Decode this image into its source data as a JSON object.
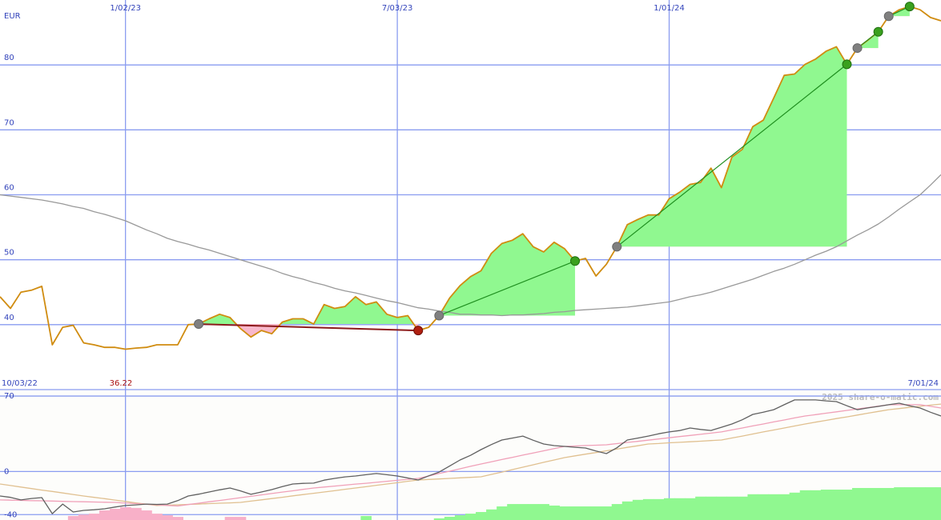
{
  "watermark": "2025 share-o-matic.com",
  "chart_data": [
    {
      "type": "line",
      "y_unit": "EUR",
      "period": [
        "10/03/22",
        "7/01/24"
      ],
      "categories": [
        null,
        null,
        null,
        null,
        null,
        null,
        null,
        null,
        null,
        null,
        null,
        null,
        "1/02/23",
        null,
        null,
        null,
        null,
        null,
        null,
        null,
        null,
        null,
        null,
        null,
        null,
        null,
        null,
        null,
        null,
        null,
        null,
        null,
        null,
        null,
        null,
        null,
        null,
        null,
        "7/03/23",
        null,
        null,
        null,
        null,
        null,
        null,
        null,
        null,
        null,
        null,
        null,
        null,
        null,
        null,
        null,
        null,
        null,
        null,
        null,
        null,
        null,
        null,
        null,
        null,
        null,
        "1/01/24",
        null,
        null,
        null,
        null,
        null,
        null,
        null,
        null,
        null,
        null,
        null,
        null,
        null,
        null,
        null,
        null,
        null,
        null,
        null,
        null,
        null,
        null,
        null,
        null,
        null,
        null
      ],
      "series": [
        {
          "color": "#d08c10",
          "values": [
            44.3,
            42.5,
            45,
            45.3,
            45.9,
            36.9,
            39.6,
            39.9,
            37.2,
            36.9,
            36.5,
            36.5,
            36.22,
            36.4,
            36.5,
            36.9,
            36.9,
            36.9,
            40,
            40.1,
            40.9,
            41.6,
            41.1,
            39.4,
            38.1,
            39.1,
            38.6,
            40.4,
            40.9,
            40.9,
            40.1,
            43.1,
            42.5,
            42.8,
            44.3,
            43.1,
            43.5,
            41.6,
            41.1,
            41.4,
            39.1,
            39.6,
            41.4,
            44.1,
            46,
            47.4,
            48.3,
            51,
            52.5,
            53,
            54,
            52,
            51.2,
            52.7,
            51.7,
            49.8,
            50.2,
            47.5,
            49.3,
            52,
            55.4,
            56.2,
            56.9,
            56.9,
            59.4,
            60.4,
            61.6,
            61.9,
            64.1,
            61.1,
            65.8,
            67,
            70.5,
            71.5,
            74.9,
            78.4,
            78.6,
            80.1,
            80.9,
            82.1,
            82.8,
            80.1,
            82.6,
            83.8,
            85.1,
            87.5,
            88.5,
            89,
            88.5,
            87.3,
            86.8
          ]
        },
        {
          "color": "#999999",
          "values": [
            60,
            59.8,
            59.6,
            59.4,
            59.2,
            58.9,
            58.6,
            58.2,
            57.9,
            57.4,
            57,
            56.5,
            56,
            55.3,
            54.6,
            54,
            53.3,
            52.8,
            52.4,
            51.9,
            51.5,
            51,
            50.5,
            50,
            49.5,
            49,
            48.5,
            47.9,
            47.4,
            47,
            46.5,
            46.1,
            45.6,
            45.2,
            44.9,
            44.5,
            44.1,
            43.7,
            43.4,
            43,
            42.6,
            42.4,
            42.1,
            41.9,
            41.6,
            41.6,
            41.5,
            41.5,
            41.4,
            41.5,
            41.5,
            41.6,
            41.7,
            41.9,
            42,
            42.2,
            42.3,
            42.4,
            42.5,
            42.6,
            42.7,
            42.9,
            43.1,
            43.3,
            43.5,
            43.9,
            44.3,
            44.6,
            45,
            45.5,
            46,
            46.5,
            47,
            47.6,
            48.2,
            48.7,
            49.3,
            50,
            50.7,
            51.3,
            52,
            52.9,
            53.8,
            54.6,
            55.5,
            56.6,
            57.8,
            58.9,
            60,
            61.5,
            63.1
          ]
        }
      ],
      "trades": [
        {
          "entry": 19,
          "exit": 40
        },
        {
          "entry": 42,
          "exit": 55
        },
        {
          "entry": 59,
          "exit": 81
        },
        {
          "entry": 82,
          "exit": 84
        },
        {
          "entry": 85,
          "exit": 87
        }
      ],
      "trade_colors": {
        "gain_area": "#90f890",
        "loss_area": "#f8b8cc",
        "gain_line": "#1f8f1f",
        "loss_line": "#8b1a1a",
        "entry_marker": "#808080",
        "gain_marker": "#3aa01e",
        "loss_marker": "#b02010",
        "min_label": "#aa1111"
      },
      "ylim": [
        30,
        90
      ],
      "yticks": [
        40,
        50,
        60,
        70,
        80
      ],
      "grid": true
    },
    {
      "type": "line",
      "series": [
        {
          "type": "bar",
          "color": "#f8b0c8",
          "values": [
            null,
            null,
            null,
            null,
            null,
            null,
            null,
            -41.3,
            -40,
            -39.1,
            -36.1,
            -34.6,
            -33.1,
            -33.8,
            -36.1,
            -39.1,
            -40.6,
            -42.1,
            null,
            null,
            null,
            null,
            -42.1,
            -42.1,
            null,
            null,
            null,
            null,
            null,
            null,
            null,
            null,
            null,
            null,
            null,
            null,
            null,
            null,
            null,
            null,
            null,
            null,
            null,
            null,
            null,
            null,
            null,
            null,
            null,
            null,
            null,
            null,
            null,
            null,
            null,
            null,
            null,
            null,
            null,
            null,
            null,
            null,
            null,
            null,
            null,
            null,
            null,
            null,
            null,
            null,
            null,
            null,
            null,
            null,
            null,
            null,
            null,
            null,
            null,
            null,
            null,
            null,
            null,
            null,
            null,
            null,
            null,
            null,
            null,
            null,
            null
          ]
        },
        {
          "type": "bar",
          "color": "#90f890",
          "values": [
            null,
            null,
            null,
            null,
            null,
            null,
            null,
            null,
            null,
            null,
            null,
            null,
            null,
            null,
            null,
            null,
            null,
            null,
            null,
            null,
            null,
            null,
            null,
            null,
            null,
            null,
            null,
            null,
            null,
            null,
            null,
            null,
            null,
            null,
            null,
            -41.3,
            null,
            null,
            null,
            null,
            null,
            null,
            -43.5,
            -42,
            -40.6,
            -39.1,
            -37.6,
            -35.2,
            -32.4,
            -30.2,
            -30.2,
            -30.2,
            -30.2,
            -31.6,
            -32.4,
            -32.4,
            -32.4,
            -32.4,
            -32.4,
            -30.2,
            -27.8,
            -26.3,
            -25.6,
            -25.6,
            -24.8,
            -24.8,
            -24.8,
            -23.3,
            -23.3,
            -23.3,
            -23.3,
            -23.3,
            -21.1,
            -21.1,
            -21.1,
            -21.1,
            -19.6,
            -17.4,
            -17.4,
            -16.8,
            -16.8,
            -16.8,
            -15.3,
            -15.3,
            -15.3,
            -15.3,
            -14.6,
            -14.6,
            -14.6,
            -14.6,
            -14.6
          ]
        },
        {
          "type": "line",
          "color": "#e0c090",
          "values": [
            -11.6,
            -13.0,
            -14.4,
            -15.8,
            -17.2,
            -18.5,
            -19.9,
            -21.3,
            -22.7,
            -24.0,
            -25.2,
            -26.5,
            -27.8,
            -29.1,
            -30.3,
            -31.6,
            -31.2,
            -30.9,
            -30.5,
            -30.2,
            -29.8,
            -29.4,
            -29.1,
            -28.7,
            -27.5,
            -26.3,
            -25.1,
            -23.9,
            -22.6,
            -21.4,
            -20.2,
            -19.0,
            -17.8,
            -16.5,
            -15.3,
            -14.1,
            -12.8,
            -11.6,
            -10.4,
            -9.1,
            -7.9,
            -7.4,
            -6.9,
            -6.4,
            -5.9,
            -5.4,
            -4.9,
            -2.7,
            -0.5,
            1.8,
            4.0,
            6.2,
            8.5,
            10.7,
            12.9,
            14.5,
            16.1,
            17.6,
            19.2,
            20.8,
            22.4,
            23.9,
            25.5,
            26.0,
            26.6,
            27.1,
            27.6,
            28.1,
            28.7,
            29.2,
            31.1,
            32.9,
            34.8,
            36.7,
            38.5,
            40.4,
            42.2,
            44.1,
            45.8,
            47.4,
            49.1,
            50.7,
            52.4,
            54.1,
            55.7,
            57.4,
            58.4,
            59.5,
            60.5,
            61.6,
            62.6
          ]
        },
        {
          "type": "line",
          "color": "#f0a0b8",
          "values": [
            -26.4,
            -26.6,
            -26.8,
            -27.0,
            -27.2,
            -27.4,
            -27.7,
            -27.9,
            -28.1,
            -28.3,
            -28.5,
            -28.7,
            -29.3,
            -29.8,
            -30.4,
            -30.9,
            -31.5,
            -32,
            -30.7,
            -29.4,
            -28.1,
            -26.9,
            -25.6,
            -24.3,
            -23.0,
            -21.7,
            -20.4,
            -19.1,
            -17.9,
            -16.6,
            -15.3,
            -14.4,
            -13.5,
            -12.6,
            -11.7,
            -10.9,
            -10.0,
            -9.1,
            -8.2,
            -7.3,
            -6.4,
            -4.2,
            -1.9,
            0.3,
            2.5,
            4.8,
            7,
            9.0,
            11.1,
            13.1,
            15.2,
            17.2,
            19.2,
            21.3,
            23.3,
            23.7,
            24.1,
            24.4,
            24.8,
            25.9,
            27.0,
            28.0,
            29.1,
            30.2,
            31.3,
            32.4,
            33.5,
            34.5,
            35.6,
            36.7,
            38.6,
            40.4,
            42.3,
            44.1,
            46.0,
            47.8,
            49.7,
            51.5,
            52.8,
            54.1,
            55.4,
            56.7,
            58.0,
            59.3,
            60.6,
            61.9,
            62,
            62,
            62,
            60.5,
            58.9
          ]
        },
        {
          "type": "line",
          "color": "#606060",
          "values": [
            -22.7,
            -24,
            -26.4,
            -25,
            -24.2,
            -39.1,
            -30.2,
            -37.6,
            -36.1,
            -35.5,
            -34.6,
            -33,
            -31.6,
            -31,
            -30.2,
            -30.5,
            -30.2,
            -27,
            -22.7,
            -21,
            -19,
            -17,
            -15.3,
            -18,
            -21.2,
            -19,
            -16.8,
            -14,
            -11.6,
            -11,
            -10.8,
            -8,
            -6.4,
            -5,
            -4.2,
            -3,
            -1.9,
            -3,
            -4.2,
            -6,
            -7.9,
            -4,
            -0.5,
            5,
            10.7,
            15,
            20.3,
            25,
            29.2,
            31,
            32.9,
            29,
            25.5,
            24,
            23.3,
            22.5,
            21.8,
            19,
            16.6,
            22,
            29.2,
            31,
            32.9,
            35,
            36.7,
            38,
            40.4,
            39,
            38.1,
            41,
            44.1,
            48,
            53,
            55,
            57.4,
            62,
            66.4,
            66.4,
            66.4,
            65.5,
            64.9,
            61,
            57.4,
            59,
            60.4,
            62,
            63.4,
            61,
            58.9,
            55,
            51.5
          ]
        }
      ],
      "ylim": [
        -45,
        76
      ],
      "yticks": [
        -40,
        0,
        70
      ],
      "grid": true
    }
  ]
}
